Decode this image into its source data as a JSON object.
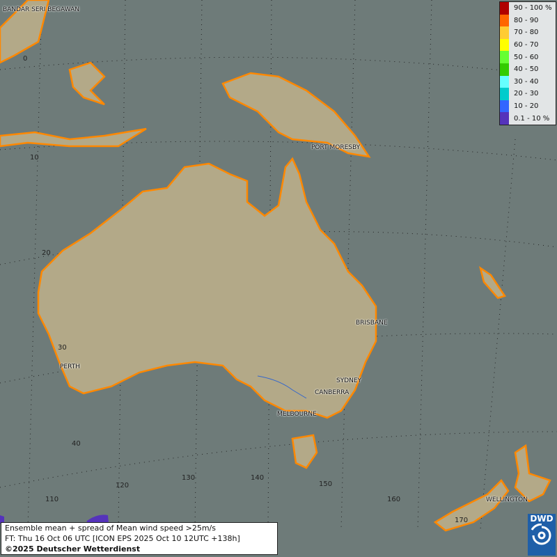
{
  "legend": [
    {
      "label": "90 - 100 %",
      "color": "#b00000"
    },
    {
      "label": "80 - 90",
      "color": "#ff6600"
    },
    {
      "label": "70 - 80",
      "color": "#ffcc33"
    },
    {
      "label": "60 - 70",
      "color": "#ffff00"
    },
    {
      "label": "50 - 60",
      "color": "#66ff33"
    },
    {
      "label": "40 - 50",
      "color": "#33cc00"
    },
    {
      "label": "30 - 40",
      "color": "#66ffff"
    },
    {
      "label": "20 - 30",
      "color": "#00cccc"
    },
    {
      "label": "10 - 20",
      "color": "#3366ff"
    },
    {
      "label": "0.1 - 10 %",
      "color": "#5533bb"
    }
  ],
  "cities": {
    "bandar": "BANDAR SERI BEGAWAN",
    "port_moresby": "PORT MORESBY",
    "brisbane": "BRISBANE",
    "perth": "PERTH",
    "sydney": "SYDNEY",
    "canberra": "CANBERRA",
    "melbourne": "MELBOURNE",
    "wellington": "WELLINGTON"
  },
  "lat_labels": [
    "0",
    "10",
    "20",
    "30",
    "40"
  ],
  "lon_labels": [
    "110",
    "120",
    "130",
    "140",
    "150",
    "160",
    "170"
  ],
  "info": {
    "line1": "Ensemble mean + spread of Mean wind speed >25m/s",
    "line2": "FT: Thu 16 Oct 06 UTC [ICON EPS 2025 Oct 10 12UTC +138h]",
    "line3": "©2025 Deutscher Wetterdienst"
  },
  "logo": {
    "text": "DWD"
  },
  "colors": {
    "ocean": "#6e7b79",
    "land": "#b5ab8a",
    "coast": "#ff8800"
  }
}
